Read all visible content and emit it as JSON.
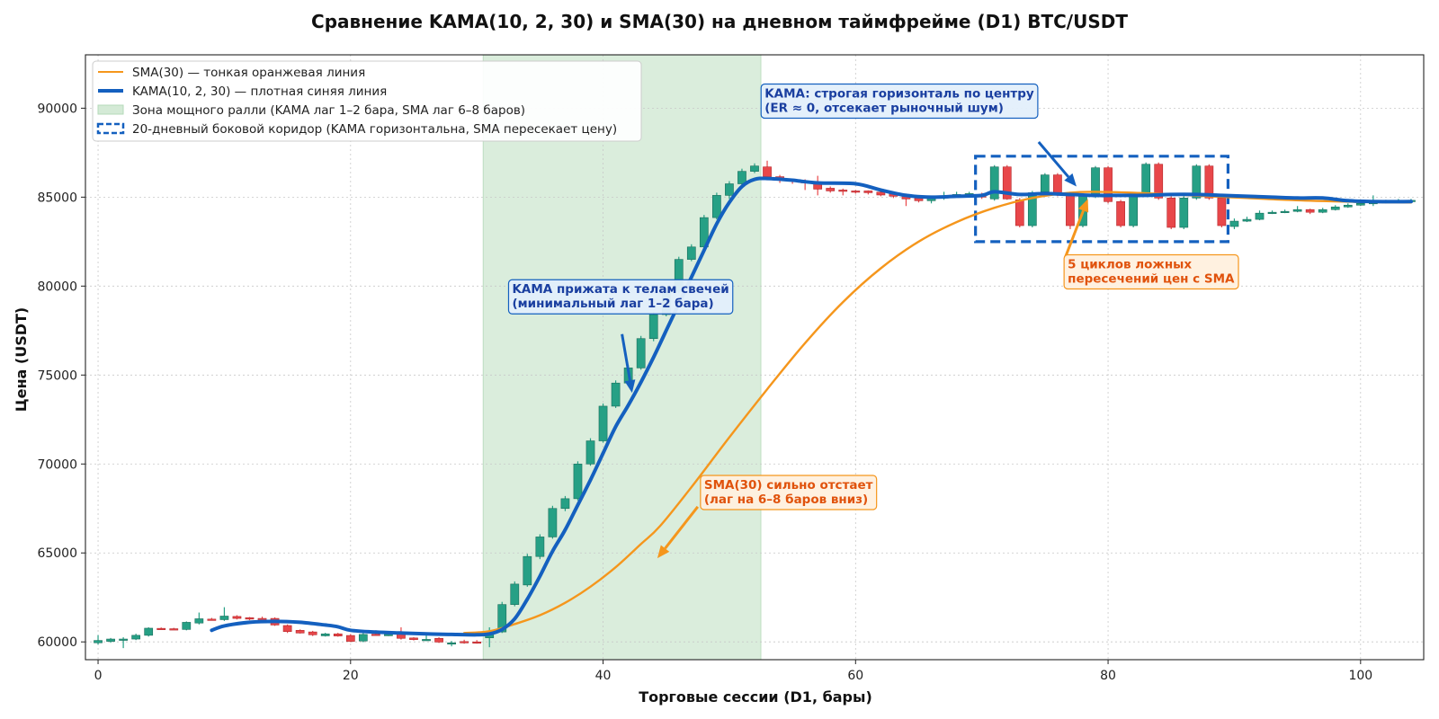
{
  "chart_data": {
    "type": "candlestick",
    "title": "Сравнение KAMA(10, 2, 30) и SMA(30) на дневном таймфрейме (D1) BTC/USDT",
    "xlabel": "Торговые сессии (D1, бары)",
    "ylabel": "Цена (USDT)",
    "xlim": [
      -1,
      105
    ],
    "ylim": [
      59000,
      93000
    ],
    "xticks": [
      0,
      20,
      40,
      60,
      80,
      100
    ],
    "yticks": [
      60000,
      65000,
      70000,
      75000,
      80000,
      85000,
      90000
    ],
    "grid": true,
    "legend_position": "top-left",
    "colors": {
      "up": "#26a085",
      "down": "#e8474a",
      "sma": "#f5961c",
      "kama": "#1460bf",
      "rally_zone": "#d4ead6",
      "corridor": "#1460bf"
    },
    "candles": [
      [
        0,
        59950,
        60080,
        60380,
        59850
      ],
      [
        1,
        60030,
        60160,
        60220,
        59950
      ],
      [
        2,
        60150,
        60160,
        60260,
        59650
      ],
      [
        3,
        60160,
        60370,
        60460,
        60100
      ],
      [
        4,
        60370,
        60770,
        60820,
        60300
      ],
      [
        5,
        60760,
        60740,
        60810,
        60720
      ],
      [
        6,
        60740,
        60710,
        60790,
        60680
      ],
      [
        7,
        60700,
        61100,
        61150,
        60650
      ],
      [
        8,
        61060,
        61300,
        61650,
        60980
      ],
      [
        9,
        61280,
        61250,
        61350,
        61200
      ],
      [
        10,
        61250,
        61450,
        61950,
        61180
      ],
      [
        11,
        61430,
        61320,
        61500,
        61260
      ],
      [
        12,
        61360,
        61280,
        61400,
        61220
      ],
      [
        13,
        61320,
        61120,
        61420,
        61050
      ],
      [
        14,
        61320,
        60950,
        61380,
        60900
      ],
      [
        15,
        60920,
        60580,
        60980,
        60500
      ],
      [
        16,
        60650,
        60500,
        60700,
        60470
      ],
      [
        17,
        60560,
        60400,
        60620,
        60330
      ],
      [
        18,
        60340,
        60450,
        60510,
        60300
      ],
      [
        19,
        60450,
        60330,
        60510,
        60290
      ],
      [
        20,
        60360,
        60030,
        60440,
        59990
      ],
      [
        21,
        60050,
        60420,
        60550,
        59980
      ],
      [
        22,
        60430,
        60420,
        60650,
        60350
      ],
      [
        23,
        60400,
        60420,
        60470,
        60330
      ],
      [
        24,
        60440,
        60200,
        60820,
        60130
      ],
      [
        25,
        60220,
        60130,
        60260,
        60080
      ],
      [
        26,
        60130,
        60140,
        60520,
        60050
      ],
      [
        27,
        60200,
        59990,
        60260,
        59940
      ],
      [
        28,
        59940,
        59950,
        60050,
        59750
      ],
      [
        29,
        60020,
        59980,
        60120,
        59900
      ],
      [
        30,
        60000,
        59960,
        60100,
        59900
      ],
      [
        31,
        60230,
        60520,
        60820,
        59700
      ],
      [
        32,
        60560,
        62100,
        62250,
        60500
      ],
      [
        33,
        62100,
        63250,
        63400,
        62000
      ],
      [
        34,
        63200,
        64800,
        64950,
        63100
      ],
      [
        35,
        64800,
        65900,
        66050,
        64650
      ],
      [
        36,
        65900,
        67500,
        67650,
        65800
      ],
      [
        37,
        67500,
        68050,
        68200,
        67350
      ],
      [
        38,
        68050,
        70000,
        70150,
        67950
      ],
      [
        39,
        70000,
        71300,
        71450,
        69900
      ],
      [
        40,
        71300,
        73250,
        73400,
        71200
      ],
      [
        41,
        73250,
        74550,
        74700,
        73150
      ],
      [
        42,
        74550,
        75400,
        75550,
        74450
      ],
      [
        43,
        75400,
        77050,
        77200,
        75300
      ],
      [
        44,
        77050,
        78400,
        78550,
        76900
      ],
      [
        45,
        78400,
        79700,
        79850,
        78300
      ],
      [
        46,
        79700,
        81500,
        81650,
        79600
      ],
      [
        47,
        81500,
        82200,
        82350,
        81400
      ],
      [
        48,
        82200,
        83850,
        84000,
        82100
      ],
      [
        49,
        83850,
        85100,
        85250,
        83750
      ],
      [
        50,
        85100,
        85750,
        85900,
        84900
      ],
      [
        51,
        85750,
        86450,
        86600,
        85650
      ],
      [
        52,
        86450,
        86750,
        86900,
        86350
      ],
      [
        53,
        86700,
        86150,
        87050,
        85950
      ],
      [
        54,
        86150,
        86050,
        86250,
        85800
      ],
      [
        55,
        86000,
        85950,
        86050,
        85750
      ],
      [
        56,
        85900,
        85800,
        86000,
        85400
      ],
      [
        57,
        85800,
        85450,
        86200,
        85100
      ],
      [
        58,
        85500,
        85350,
        85600,
        85250
      ],
      [
        59,
        85400,
        85350,
        85480,
        85100
      ],
      [
        60,
        85350,
        85320,
        85400,
        85200
      ],
      [
        61,
        85350,
        85250,
        85380,
        85150
      ],
      [
        62,
        85280,
        85120,
        85450,
        85050
      ],
      [
        63,
        85200,
        85050,
        85250,
        84950
      ],
      [
        64,
        85100,
        84900,
        85200,
        84500
      ],
      [
        65,
        84950,
        84800,
        85050,
        84700
      ],
      [
        66,
        84800,
        84950,
        85050,
        84650
      ],
      [
        67,
        84950,
        85080,
        85300,
        84850
      ],
      [
        68,
        85100,
        85150,
        85300,
        85000
      ],
      [
        69,
        85150,
        85200,
        85300,
        85100
      ],
      [
        70,
        85150,
        85000,
        85250,
        84900
      ],
      [
        71,
        84900,
        86700,
        86800,
        84800
      ],
      [
        72,
        86700,
        84900,
        86800,
        84850
      ],
      [
        73,
        84850,
        83400,
        84950,
        83300
      ],
      [
        74,
        83400,
        85250,
        85350,
        83300
      ],
      [
        75,
        85300,
        86250,
        86350,
        85200
      ],
      [
        76,
        86250,
        85150,
        86350,
        85050
      ],
      [
        77,
        85200,
        83400,
        85300,
        83200
      ],
      [
        78,
        83400,
        85050,
        85150,
        83300
      ],
      [
        79,
        85050,
        86650,
        86750,
        84950
      ],
      [
        80,
        86650,
        84750,
        86750,
        84650
      ],
      [
        81,
        84750,
        83400,
        84850,
        83300
      ],
      [
        82,
        83400,
        85150,
        85250,
        83300
      ],
      [
        83,
        85150,
        86850,
        86950,
        85050
      ],
      [
        84,
        86850,
        84950,
        86950,
        84850
      ],
      [
        85,
        84950,
        83300,
        85050,
        83200
      ],
      [
        86,
        83300,
        84950,
        85050,
        83200
      ],
      [
        87,
        84950,
        86750,
        86850,
        84850
      ],
      [
        88,
        86750,
        84950,
        86850,
        84850
      ],
      [
        89,
        84950,
        83400,
        85050,
        83300
      ],
      [
        90,
        83350,
        83650,
        83800,
        83200
      ],
      [
        91,
        83650,
        83750,
        83900,
        83600
      ],
      [
        92,
        83750,
        84100,
        84250,
        83700
      ],
      [
        93,
        84100,
        84150,
        84250,
        84050
      ],
      [
        94,
        84150,
        84200,
        84300,
        84100
      ],
      [
        95,
        84200,
        84300,
        84500,
        84150
      ],
      [
        96,
        84300,
        84150,
        84350,
        84050
      ],
      [
        97,
        84150,
        84300,
        84400,
        84100
      ],
      [
        98,
        84300,
        84450,
        84550,
        84250
      ],
      [
        99,
        84450,
        84550,
        84650,
        84400
      ],
      [
        100,
        84550,
        84650,
        84750,
        84500
      ],
      [
        101,
        84650,
        84700,
        85100,
        84500
      ],
      [
        102,
        84700,
        84750,
        84850,
        84650
      ],
      [
        103,
        84750,
        84800,
        84900,
        84700
      ],
      [
        104,
        84800,
        84820,
        84900,
        84750
      ]
    ],
    "series": [
      {
        "name": "SMA(30) — тонкая оранжевая линия",
        "x": [
          29,
          31,
          33,
          35,
          37,
          39,
          41,
          43,
          44.5,
          47,
          50,
          53,
          56,
          59,
          62,
          65,
          68,
          71,
          74,
          77,
          79,
          82,
          85,
          88,
          91,
          94,
          97,
          100,
          104
        ],
        "y": [
          60500,
          60600,
          61000,
          61500,
          62200,
          63100,
          64200,
          65500,
          66500,
          68700,
          71500,
          74200,
          76800,
          79100,
          81000,
          82500,
          83600,
          84400,
          84950,
          85250,
          85300,
          85250,
          85150,
          85050,
          84950,
          84850,
          84780,
          84730,
          84700
        ]
      },
      {
        "name": "KAMA(10, 2, 30) — плотная синяя линия",
        "x": [
          9,
          10,
          12,
          14,
          16,
          18,
          19,
          20,
          22,
          24,
          26,
          28,
          30,
          31,
          32,
          33,
          34,
          35,
          36,
          37,
          38,
          39,
          40,
          41,
          42,
          43,
          44,
          45,
          46,
          47,
          48,
          49,
          50,
          51,
          52,
          53,
          55,
          57,
          60,
          62,
          64,
          66,
          68,
          70,
          71,
          73,
          75,
          77,
          79,
          81,
          83,
          85,
          87,
          89,
          91,
          93,
          95,
          97,
          99,
          101,
          104
        ],
        "y": [
          60650,
          60900,
          61100,
          61150,
          61100,
          60950,
          60850,
          60650,
          60550,
          60500,
          60450,
          60420,
          60400,
          60450,
          60700,
          61300,
          62400,
          63700,
          65100,
          66300,
          67700,
          69100,
          70600,
          72100,
          73300,
          74600,
          76000,
          77500,
          79000,
          80500,
          82000,
          83500,
          84700,
          85600,
          86000,
          86050,
          85950,
          85800,
          85750,
          85400,
          85100,
          85000,
          85050,
          85100,
          85300,
          85150,
          85200,
          85150,
          85100,
          85100,
          85100,
          85150,
          85150,
          85100,
          85050,
          85000,
          84950,
          84950,
          84800,
          84750,
          84750
        ]
      }
    ],
    "rally_zone": {
      "x_range": [
        30.5,
        52.5
      ],
      "label": "Зона мощного ралли (KAMA лаг 1–2 бара, SMA лаг 6–8 баров)"
    },
    "corridor": {
      "x_range": [
        69.5,
        89.5
      ],
      "y_range": [
        82500,
        87300
      ],
      "label": "20-дневный боковой коридор (KAMA горизонтальна, SMA пересекает цену)"
    },
    "annotations": [
      {
        "id": "kama-rally",
        "lines": [
          "KAMA прижата к телам свечей",
          "(минимальный лаг 1–2 бара)"
        ],
        "text_pos": [
          32.8,
          79600
        ],
        "arrow_from": [
          41.5,
          77300
        ],
        "arrow_to": [
          42.3,
          74000
        ],
        "color": "#1a3fa0",
        "box_fill": "#e3effb",
        "box_stroke": "#1460bf"
      },
      {
        "id": "sma-lag",
        "lines": [
          "SMA(30) сильно отстает",
          "(лаг на 6–8 баров вниз)"
        ],
        "text_pos": [
          48,
          68600
        ],
        "arrow_from": [
          47.5,
          67600
        ],
        "arrow_to": [
          44.3,
          64700
        ],
        "color": "#e0520c",
        "box_fill": "#fff0de",
        "box_stroke": "#f5961c"
      },
      {
        "id": "kama-flat",
        "lines": [
          "KAMA: строгая горизонталь по центру",
          "(ER ≈ 0, отсекает рыночный шум)"
        ],
        "text_pos": [
          52.8,
          90600
        ],
        "arrow_from": [
          74.5,
          88100
        ],
        "arrow_to": [
          77.5,
          85600
        ],
        "color": "#1a3fa0",
        "box_fill": "#e3effb",
        "box_stroke": "#1460bf"
      },
      {
        "id": "sma-crossings",
        "lines": [
          "5 циклов ложных",
          "пересечений цен с SMA"
        ],
        "text_pos": [
          76.8,
          81000
        ],
        "arrow_from": [
          76.6,
          81600
        ],
        "arrow_to": [
          78.4,
          84900
        ],
        "color": "#e0520c",
        "box_fill": "#fff0de",
        "box_stroke": "#f5961c"
      }
    ]
  }
}
